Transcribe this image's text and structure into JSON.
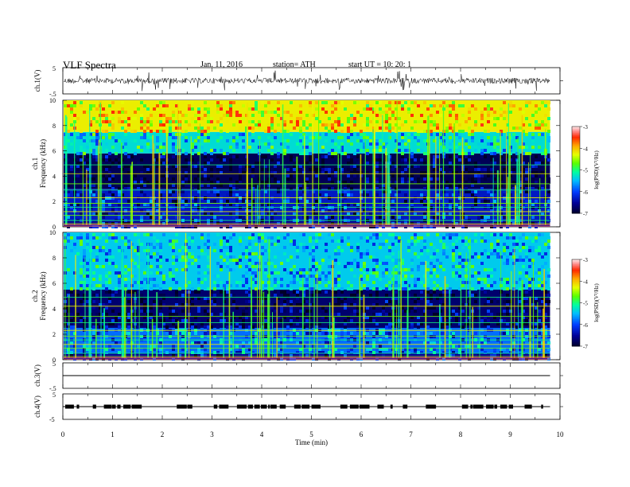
{
  "header": {
    "title": "VLF  Spectra",
    "date": "Jan. 11, 2016",
    "station": "station= ATH",
    "start": "start  UT  =    10: 20: 1"
  },
  "chart_data": [
    {
      "id": "ch1-waveform",
      "type": "line",
      "ylabel": "ch.1(V)",
      "ylim": [
        -5,
        5
      ],
      "yticks": [
        "5",
        "-.5"
      ],
      "series": [
        {
          "description": "continuous noisy waveform near 0 V with frequent spikes",
          "color": "#000000"
        }
      ]
    },
    {
      "id": "ch1-spectrogram",
      "type": "heatmap",
      "ylabel": "ch.1\nFrequency  (kHz)",
      "ylim": [
        0,
        10
      ],
      "yticks": [
        0,
        2,
        4,
        6,
        8,
        10
      ],
      "colorbar": {
        "label": "log(PSD)(V²/Hz)",
        "range": [
          -7,
          -3
        ],
        "ticks": [
          "-3",
          "-4",
          "-5",
          "-6",
          "-7"
        ]
      },
      "bands": [
        {
          "freq_range": [
            0,
            0.5
          ],
          "level": -6.5
        },
        {
          "freq_range": [
            0.5,
            3.0
          ],
          "level": -6.3
        },
        {
          "freq_range": [
            3.0,
            5.8
          ],
          "level": -6.8
        },
        {
          "freq_range": [
            5.8,
            7.5
          ],
          "level": -5.3
        },
        {
          "freq_range": [
            7.5,
            10
          ],
          "level": -4.2
        }
      ]
    },
    {
      "id": "ch2-spectrogram",
      "type": "heatmap",
      "ylabel": "ch.2\nFrequency  (kHz)",
      "ylim": [
        0,
        10
      ],
      "yticks": [
        0,
        2,
        4,
        6,
        8,
        10
      ],
      "colorbar": {
        "label": "log(PSD)(V²/Hz)",
        "range": [
          -7,
          -3
        ],
        "ticks": [
          "-3",
          "-4",
          "-5",
          "-6",
          "-7"
        ]
      },
      "bands": [
        {
          "freq_range": [
            0,
            0.5
          ],
          "level": -6.5
        },
        {
          "freq_range": [
            0.5,
            2.5
          ],
          "level": -5.8
        },
        {
          "freq_range": [
            2.5,
            5.5
          ],
          "level": -6.7
        },
        {
          "freq_range": [
            5.5,
            10
          ],
          "level": -5.4
        }
      ]
    },
    {
      "id": "ch3-waveform",
      "type": "line",
      "ylabel": "ch.3(V)",
      "ylim": [
        -5,
        5
      ],
      "yticks": [
        "5",
        "-.5"
      ],
      "series": [
        {
          "description": "flat line",
          "color": "#000000"
        }
      ]
    },
    {
      "id": "ch4-waveform",
      "type": "line",
      "ylabel": "ch.4(V)",
      "ylim": [
        -5,
        5
      ],
      "yticks": [
        "5",
        "-5"
      ],
      "series": [
        {
          "description": "intermittent square pulses",
          "color": "#000000"
        }
      ]
    }
  ],
  "xaxis": {
    "label": "Time  (min)",
    "ticks": [
      "0",
      "1",
      "2",
      "3",
      "4",
      "5",
      "6",
      "7",
      "8",
      "9",
      "10"
    ],
    "range": [
      0,
      10
    ],
    "data_end_min": 9.8
  }
}
